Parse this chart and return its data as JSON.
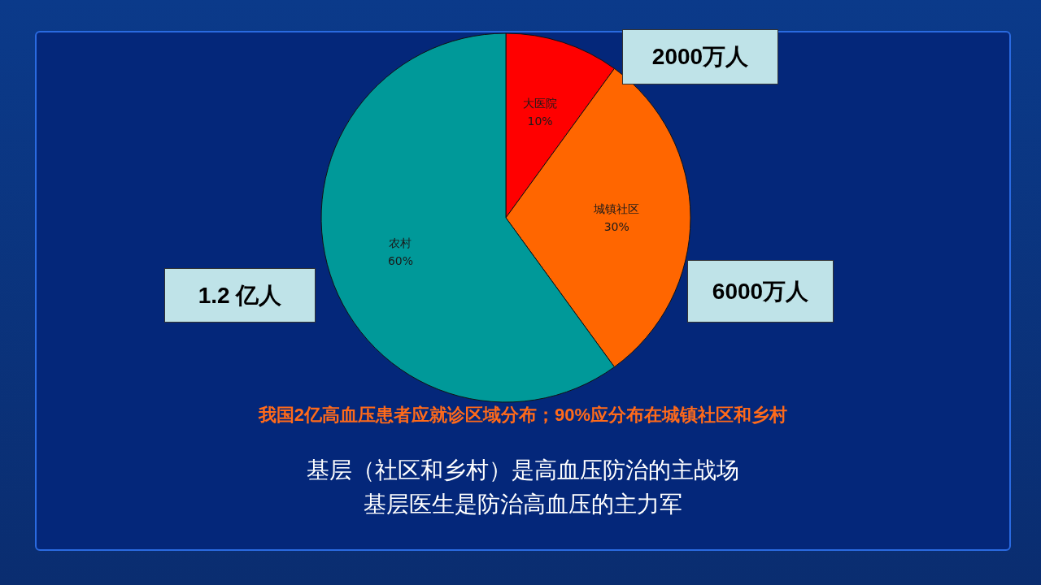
{
  "chart_data": {
    "type": "pie",
    "categories": [
      "大医院",
      "城镇社区",
      "农村"
    ],
    "values": [
      10,
      30,
      60
    ],
    "colors": [
      "#ff0000",
      "#ff6600",
      "#009999"
    ],
    "value_labels": [
      "10%",
      "30%",
      "60%"
    ],
    "annotations": [
      "2000万人",
      "6000万人",
      "1.2 亿人",
      "我国2亿高血压患者应就诊区域分布；90%应分布在城镇社区和乡村",
      "基层（社区和乡村）是高血压防治的主战场",
      "基层医生是防治高血压的主力军"
    ],
    "legend": false
  }
}
